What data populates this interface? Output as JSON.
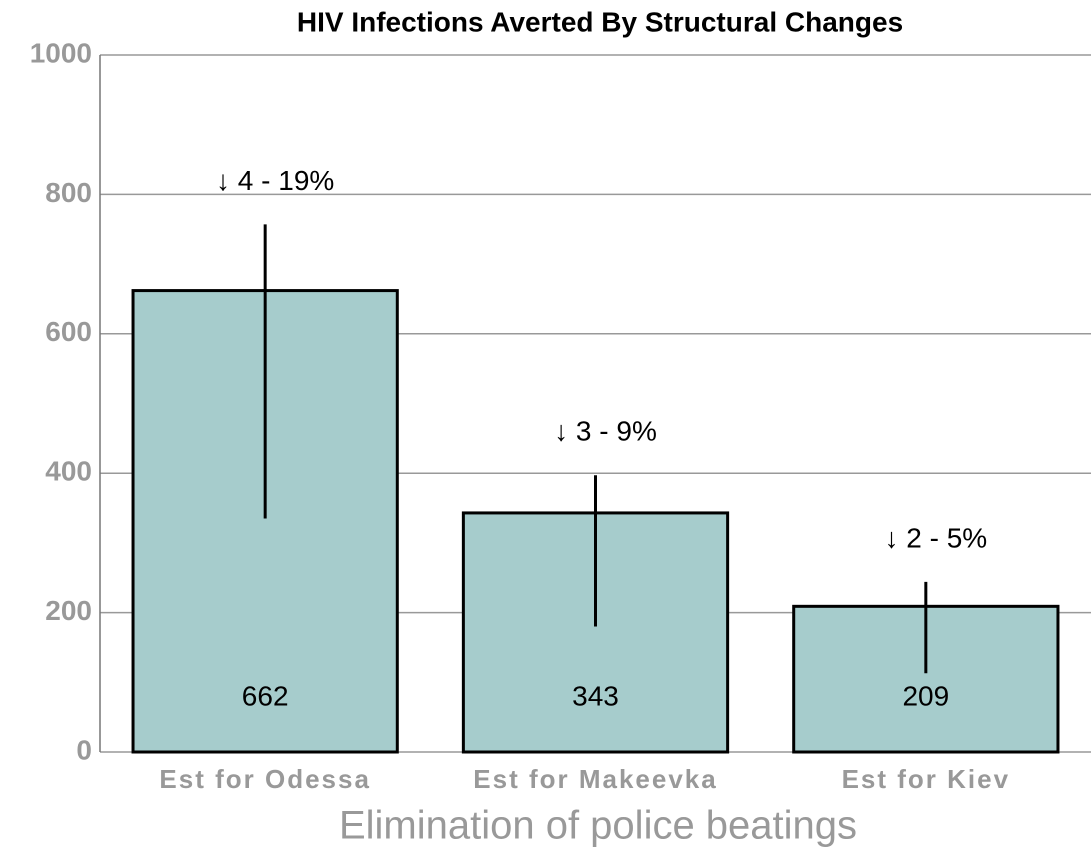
{
  "chart_data": {
    "type": "bar",
    "title": "HIV Infections Averted By Structural Changes",
    "x_label": "Elimination of police beatings",
    "categories": [
      "Est for Odessa",
      "Est for Makeevka",
      "Est for Kiev"
    ],
    "values": [
      662,
      343,
      209
    ],
    "error_lower": [
      335,
      180,
      113
    ],
    "error_upper": [
      757,
      397,
      244
    ],
    "annotations": [
      "↓ 4 - 19%",
      "↓ 3 - 9%",
      "↓ 2 - 5%"
    ],
    "color": "#a6cccc",
    "ylim": [
      0,
      1000
    ],
    "yticks": [
      0,
      200,
      400,
      600,
      800,
      1000
    ],
    "grid": true
  }
}
